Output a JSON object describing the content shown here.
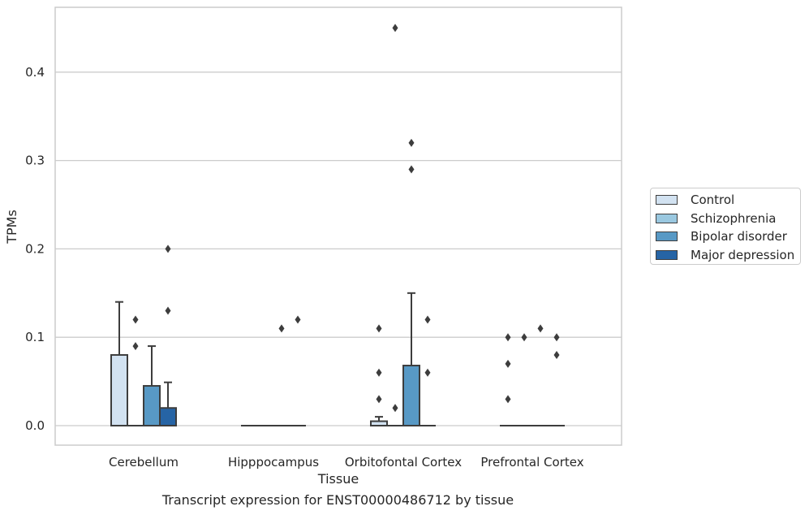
{
  "chart_data": {
    "type": "box",
    "xlabel": "Tissue",
    "ylabel": "TPMs",
    "ylim": [
      -0.022,
      0.475
    ],
    "yticks": [
      0.0,
      0.1,
      0.2,
      0.3,
      0.4
    ],
    "ytick_labels": [
      "0.0",
      "0.1",
      "0.2",
      "0.3",
      "0.4"
    ],
    "grid": "horizontal",
    "legend_position": "right",
    "categories": [
      "Cerebellum",
      "Hipppocampus",
      "Orbitofontal Cortex",
      "Prefrontal Cortex"
    ],
    "series": [
      {
        "name": "Control",
        "color": "#d2e2f1",
        "boxes": [
          {
            "q1": 0.0,
            "median": 0.0,
            "q3": 0.08,
            "whisker_low": 0.0,
            "whisker_high": 0.14,
            "outliers": []
          },
          {
            "q1": 0.0,
            "median": 0.0,
            "q3": 0.0,
            "whisker_low": 0.0,
            "whisker_high": 0.0,
            "outliers": []
          },
          {
            "q1": 0.0,
            "median": 0.0,
            "q3": 0.005,
            "whisker_low": 0.0,
            "whisker_high": 0.01,
            "outliers": [
              0.03,
              0.06,
              0.11
            ]
          },
          {
            "q1": 0.0,
            "median": 0.0,
            "q3": 0.0,
            "whisker_low": 0.0,
            "whisker_high": 0.0,
            "outliers": [
              0.03,
              0.07,
              0.1
            ]
          }
        ]
      },
      {
        "name": "Schizophrenia",
        "color": "#9ac8e0",
        "boxes": [
          {
            "q1": 0.0,
            "median": 0.0,
            "q3": 0.0,
            "whisker_low": 0.0,
            "whisker_high": 0.0,
            "outliers": [
              0.09,
              0.12
            ]
          },
          {
            "q1": 0.0,
            "median": 0.0,
            "q3": 0.0,
            "whisker_low": 0.0,
            "whisker_high": 0.0,
            "outliers": []
          },
          {
            "q1": 0.0,
            "median": 0.0,
            "q3": 0.0,
            "whisker_low": 0.0,
            "whisker_high": 0.0,
            "outliers": [
              0.02,
              0.45
            ]
          },
          {
            "q1": 0.0,
            "median": 0.0,
            "q3": 0.0,
            "whisker_low": 0.0,
            "whisker_high": 0.0,
            "outliers": [
              0.1
            ]
          }
        ]
      },
      {
        "name": "Bipolar disorder",
        "color": "#5899c5",
        "boxes": [
          {
            "q1": 0.0,
            "median": 0.0,
            "q3": 0.045,
            "whisker_low": 0.0,
            "whisker_high": 0.09,
            "outliers": []
          },
          {
            "q1": 0.0,
            "median": 0.0,
            "q3": 0.0,
            "whisker_low": 0.0,
            "whisker_high": 0.0,
            "outliers": [
              0.11
            ]
          },
          {
            "q1": 0.0,
            "median": 0.0,
            "q3": 0.068,
            "whisker_low": 0.0,
            "whisker_high": 0.15,
            "outliers": [
              0.29,
              0.32
            ]
          },
          {
            "q1": 0.0,
            "median": 0.0,
            "q3": 0.0,
            "whisker_low": 0.0,
            "whisker_high": 0.0,
            "outliers": [
              0.11
            ]
          }
        ]
      },
      {
        "name": "Major depression",
        "color": "#2664a5",
        "boxes": [
          {
            "q1": 0.0,
            "median": 0.0,
            "q3": 0.02,
            "whisker_low": 0.0,
            "whisker_high": 0.049,
            "outliers": [
              0.13,
              0.2
            ]
          },
          {
            "q1": 0.0,
            "median": 0.0,
            "q3": 0.0,
            "whisker_low": 0.0,
            "whisker_high": 0.0,
            "outliers": [
              0.12
            ]
          },
          {
            "q1": 0.0,
            "median": 0.0,
            "q3": 0.0,
            "whisker_low": 0.0,
            "whisker_high": 0.0,
            "outliers": [
              0.06,
              0.12
            ]
          },
          {
            "q1": 0.0,
            "median": 0.0,
            "q3": 0.0,
            "whisker_low": 0.0,
            "whisker_high": 0.0,
            "outliers": [
              0.08,
              0.1
            ]
          }
        ]
      }
    ]
  },
  "caption": "Transcript expression for ENST00000486712 by tissue"
}
